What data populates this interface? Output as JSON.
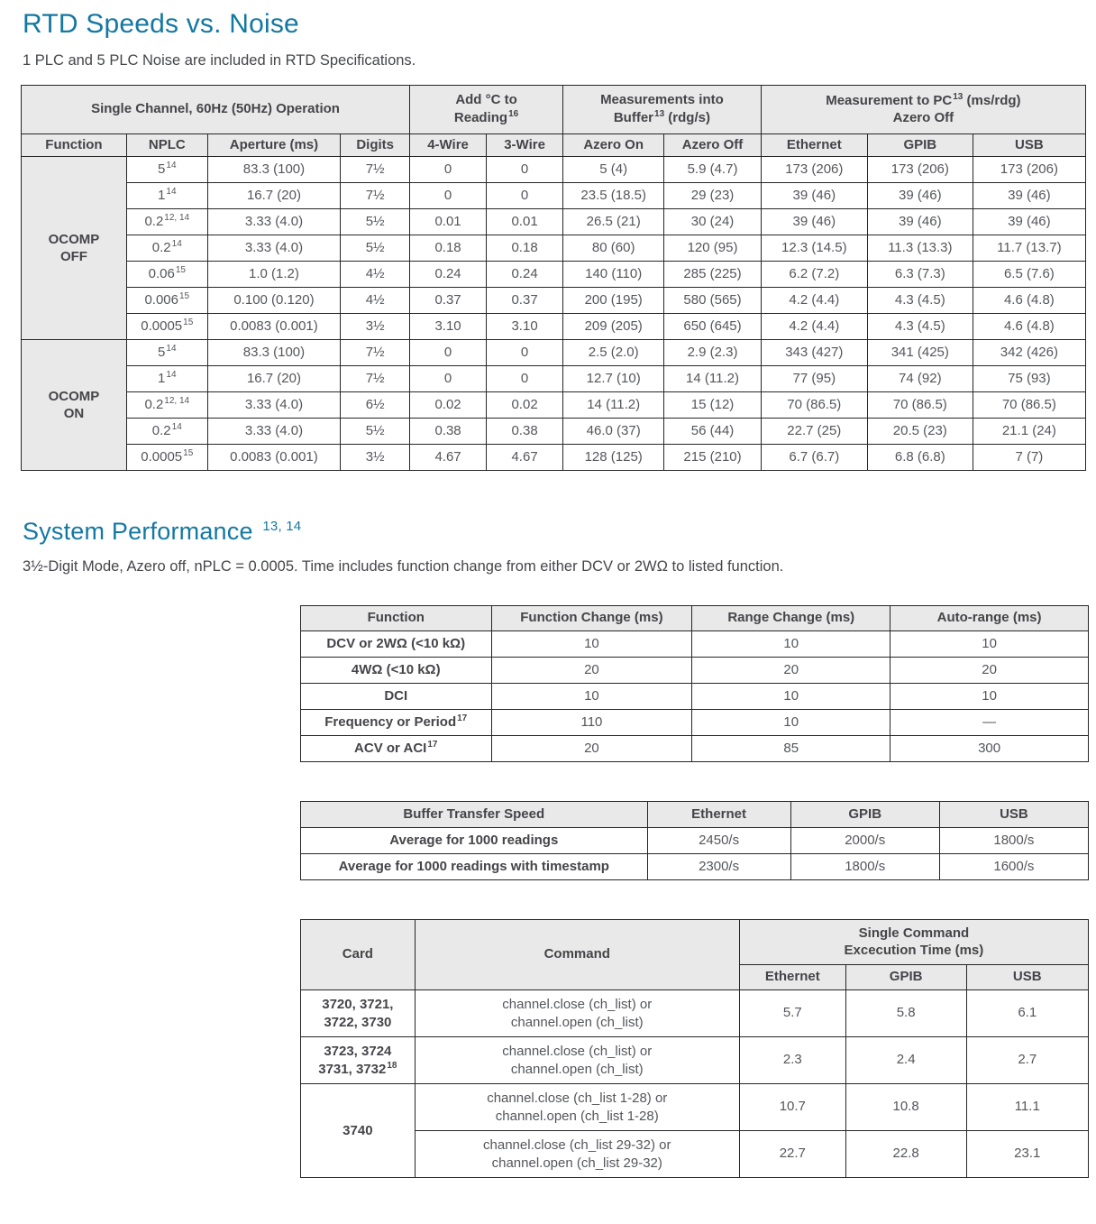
{
  "colors": {
    "accent": "#1478a2",
    "header_bg": "#e9e9e9",
    "border": "#262626",
    "text": "#55565b"
  },
  "section_rtd": {
    "title": "RTD Speeds vs. Noise",
    "subtitle": "1 PLC and 5 PLC Noise are included in RTD Specifications."
  },
  "rtd_table": {
    "hdr_single_channel": "Single Channel, 60Hz (50Hz) Operation",
    "hdr_add_c": {
      "line1": "Add °C to",
      "line2": "Reading",
      "sup": "16"
    },
    "hdr_buffer": {
      "line1": "Measurements into",
      "line2_pre": "Buffer",
      "sup": "13",
      "line2_post": " (rdg/s)"
    },
    "hdr_pc": {
      "line1_pre": "Measurement to PC",
      "sup": "13",
      "line1_post": " (ms/rdg)",
      "line2": "Azero Off"
    },
    "col_headers": [
      "Function",
      "NPLC",
      "Aperture (ms)",
      "Digits",
      "4-Wire",
      "3-Wire",
      "Azero On",
      "Azero Off",
      "Ethernet",
      "GPIB",
      "USB"
    ],
    "groups": [
      {
        "label_lines": [
          "OCOMP",
          "OFF"
        ],
        "rows": [
          [
            [
              "5",
              "14"
            ],
            "83.3 (100)",
            "7½",
            "0",
            "0",
            "5 (4)",
            "5.9 (4.7)",
            "173 (206)",
            "173 (206)",
            "173 (206)"
          ],
          [
            [
              "1",
              "14"
            ],
            "16.7 (20)",
            "7½",
            "0",
            "0",
            "23.5 (18.5)",
            "29 (23)",
            "39 (46)",
            "39 (46)",
            "39 (46)"
          ],
          [
            [
              "0.2",
              "12, 14"
            ],
            "3.33 (4.0)",
            "5½",
            "0.01",
            "0.01",
            "26.5 (21)",
            "30 (24)",
            "39 (46)",
            "39 (46)",
            "39 (46)"
          ],
          [
            [
              "0.2",
              "14"
            ],
            "3.33 (4.0)",
            "5½",
            "0.18",
            "0.18",
            "80 (60)",
            "120 (95)",
            "12.3 (14.5)",
            "11.3 (13.3)",
            "11.7 (13.7)"
          ],
          [
            [
              "0.06",
              "15"
            ],
            "1.0 (1.2)",
            "4½",
            "0.24",
            "0.24",
            "140 (110)",
            "285 (225)",
            "6.2 (7.2)",
            "6.3 (7.3)",
            "6.5 (7.6)"
          ],
          [
            [
              "0.006",
              "15"
            ],
            "0.100 (0.120)",
            "4½",
            "0.37",
            "0.37",
            "200 (195)",
            "580 (565)",
            "4.2 (4.4)",
            "4.3 (4.5)",
            "4.6 (4.8)"
          ],
          [
            [
              "0.0005",
              "15"
            ],
            "0.0083 (0.001)",
            "3½",
            "3.10",
            "3.10",
            "209 (205)",
            "650 (645)",
            "4.2 (4.4)",
            "4.3 (4.5)",
            "4.6 (4.8)"
          ]
        ]
      },
      {
        "label_lines": [
          "OCOMP",
          "ON"
        ],
        "rows": [
          [
            [
              "5",
              "14"
            ],
            "83.3 (100)",
            "7½",
            "0",
            "0",
            "2.5 (2.0)",
            "2.9 (2.3)",
            "343 (427)",
            "341 (425)",
            "342 (426)"
          ],
          [
            [
              "1",
              "14"
            ],
            "16.7 (20)",
            "7½",
            "0",
            "0",
            "12.7 (10)",
            "14 (11.2)",
            "77 (95)",
            "74 (92)",
            "75 (93)"
          ],
          [
            [
              "0.2",
              "12, 14"
            ],
            "3.33 (4.0)",
            "6½",
            "0.02",
            "0.02",
            "14 (11.2)",
            "15 (12)",
            "70 (86.5)",
            "70 (86.5)",
            "70 (86.5)"
          ],
          [
            [
              "0.2",
              "14"
            ],
            "3.33 (4.0)",
            "5½",
            "0.38",
            "0.38",
            "46.0 (37)",
            "56 (44)",
            "22.7 (25)",
            "20.5 (23)",
            "21.1 (24)"
          ],
          [
            [
              "0.0005",
              "15"
            ],
            "0.0083 (0.001)",
            "3½",
            "4.67",
            "4.67",
            "128 (125)",
            "215 (210)",
            "6.7 (6.7)",
            "6.8 (6.8)",
            "7 (7)"
          ]
        ]
      }
    ]
  },
  "section_sys": {
    "title": "System Performance",
    "title_sup": "13, 14",
    "subtitle": "3½-Digit Mode, Azero off, nPLC = 0.0005. Time includes function change from either DCV or 2WΩ to listed function."
  },
  "sys_table": {
    "headers": [
      "Function",
      "Function Change (ms)",
      "Range Change (ms)",
      "Auto-range (ms)"
    ],
    "rows": [
      [
        "DCV or 2WΩ (<10 kΩ)",
        "10",
        "10",
        "10"
      ],
      [
        "4WΩ (<10 kΩ)",
        "20",
        "20",
        "20"
      ],
      [
        "DCI",
        "10",
        "10",
        "10"
      ],
      [
        [
          "Frequency or Period",
          "17"
        ],
        "110",
        "10",
        "—"
      ],
      [
        [
          "ACV or ACI",
          "17"
        ],
        "20",
        "85",
        "300"
      ]
    ]
  },
  "buffer_table": {
    "headers": [
      "Buffer Transfer Speed",
      "Ethernet",
      "GPIB",
      "USB"
    ],
    "rows": [
      [
        "Average for 1000 readings",
        "2450/s",
        "2000/s",
        "1800/s"
      ],
      [
        "Average for 1000 readings with timestamp",
        "2300/s",
        "1800/s",
        "1600/s"
      ]
    ]
  },
  "card_table": {
    "group_header": {
      "line1": "Single Command",
      "line2": "Excecution Time (ms)"
    },
    "hdr_card": "Card",
    "hdr_command": "Command",
    "iface_headers": [
      "Ethernet",
      "GPIB",
      "USB"
    ],
    "rows": [
      {
        "card": {
          "lines": [
            "3720, 3721,",
            "3722, 3730"
          ]
        },
        "cmd": [
          "channel.close (ch_list) or",
          "channel.open (ch_list)"
        ],
        "vals": [
          "5.7",
          "5.8",
          "6.1"
        ]
      },
      {
        "card": {
          "lines": [
            "3723, 3724",
            [
              "3731, 3732",
              "18"
            ]
          ]
        },
        "cmd": [
          "channel.close (ch_list) or",
          "channel.open (ch_list)"
        ],
        "vals": [
          "2.3",
          "2.4",
          "2.7"
        ]
      },
      {
        "card": {
          "lines": [
            "3740"
          ],
          "rowspan": 2
        },
        "cmd": [
          "channel.close (ch_list 1-28) or",
          "channel.open (ch_list 1-28)"
        ],
        "vals": [
          "10.7",
          "10.8",
          "11.1"
        ]
      },
      {
        "cmd": [
          "channel.close (ch_list 29-32) or",
          "channel.open (ch_list 29-32)"
        ],
        "vals": [
          "22.7",
          "22.8",
          "23.1"
        ]
      }
    ]
  }
}
